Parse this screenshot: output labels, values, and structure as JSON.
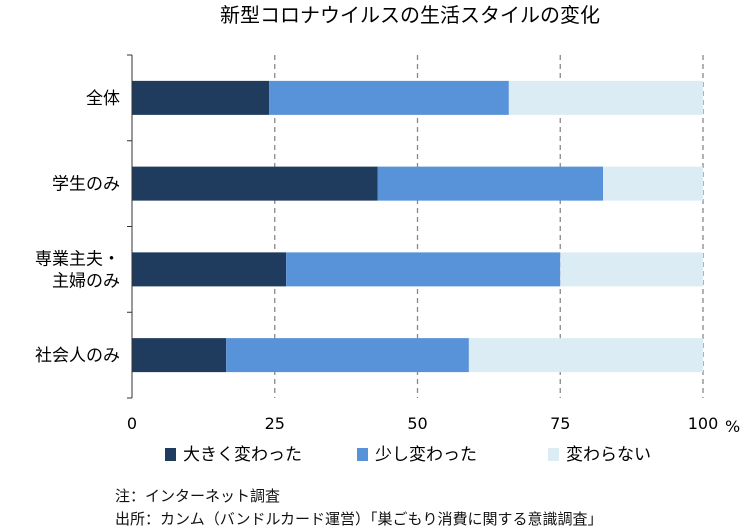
{
  "chart_data": {
    "type": "bar",
    "orientation": "horizontal",
    "stacked": true,
    "title": "新型コロナウイルスの生活スタイルの変化",
    "categories": [
      "全体",
      "学生のみ",
      "専業主夫・主婦のみ",
      "社会人のみ"
    ],
    "category_lines": [
      [
        "全体"
      ],
      [
        "学生のみ"
      ],
      [
        "専業主夫・",
        "主婦のみ"
      ],
      [
        "社会人のみ"
      ]
    ],
    "series": [
      {
        "name": "大きく変わった",
        "values": [
          24,
          43,
          27,
          16.5
        ],
        "color": "#1f3b5e"
      },
      {
        "name": "少し変わった",
        "values": [
          42,
          39.5,
          48,
          42.5
        ],
        "color": "#5892d8"
      },
      {
        "name": "変わらない",
        "values": [
          34,
          17.5,
          25,
          41
        ],
        "color": "#dcecf4"
      }
    ],
    "xlim": [
      0,
      100
    ],
    "x_ticks": [
      0,
      25,
      50,
      75,
      100
    ],
    "x_unit": "%",
    "grid": "vertical dashed",
    "legend_position": "bottom"
  },
  "notes": {
    "note": "注：インターネット調査",
    "source": "出所：カンム（バンドルカード運営）「巣ごもり消費に関する意識調査」"
  }
}
